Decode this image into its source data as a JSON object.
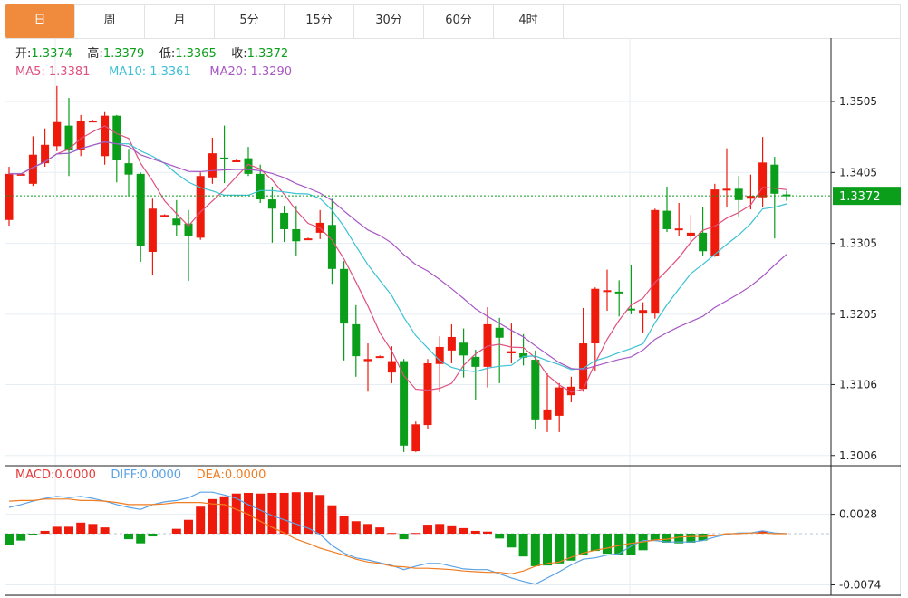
{
  "tabs": [
    {
      "label": "日",
      "active": true
    },
    {
      "label": "周",
      "active": false
    },
    {
      "label": "月",
      "active": false
    },
    {
      "label": "5分",
      "active": false
    },
    {
      "label": "15分",
      "active": false
    },
    {
      "label": "30分",
      "active": false
    },
    {
      "label": "60分",
      "active": false
    },
    {
      "label": "4时",
      "active": false
    }
  ],
  "ohlc_legend": {
    "open_label": "开:",
    "open": "1.3374",
    "high_label": "高:",
    "high": "1.3379",
    "low_label": "低:",
    "low": "1.3365",
    "close_label": "收:",
    "close": "1.3372"
  },
  "ma_legend": {
    "ma5": "MA5: 1.3381",
    "ma10": "MA10: 1.3361",
    "ma20": "MA20: 1.3290"
  },
  "macd_legend": {
    "macd": "MACD:0.0000",
    "diff": "DIFF:0.0000",
    "dea": "DEA:0.0000"
  },
  "colors": {
    "up": "#ee1b0d",
    "down": "#0a9e1a",
    "ma5": "#e0507f",
    "ma10": "#3cc1d3",
    "ma20": "#a757c4",
    "diff": "#5aa2e6",
    "dea": "#f07d22",
    "macd_label": "#e53b3b",
    "active_tab": "#f08a3c"
  },
  "chart_data": [
    {
      "type": "candlestick",
      "price_ticks": [
        "1.3505",
        "1.3405",
        "1.3305",
        "1.3205",
        "1.3106",
        "1.3006"
      ],
      "current_price": "1.3372",
      "ylim": [
        1.2992,
        1.3568
      ],
      "grid": true,
      "moving_averages": [
        5,
        10,
        20
      ],
      "ohlc": [
        [
          1.3338,
          1.3413,
          1.333,
          1.3403
        ],
        [
          1.3403,
          1.3404,
          1.3402,
          1.3403
        ],
        [
          1.3389,
          1.3456,
          1.3386,
          1.343
        ],
        [
          1.3418,
          1.3467,
          1.3413,
          1.3444
        ],
        [
          1.3442,
          1.3527,
          1.3435,
          1.3476
        ],
        [
          1.3471,
          1.351,
          1.34,
          1.3436
        ],
        [
          1.3436,
          1.3486,
          1.3428,
          1.3478
        ],
        [
          1.3478,
          1.3479,
          1.3477,
          1.3478
        ],
        [
          1.3428,
          1.349,
          1.3416,
          1.3485
        ],
        [
          1.3485,
          1.3486,
          1.3391,
          1.3422
        ],
        [
          1.3418,
          1.3437,
          1.3371,
          1.3402
        ],
        [
          1.3403,
          1.3405,
          1.3279,
          1.3302
        ],
        [
          1.3293,
          1.3368,
          1.3261,
          1.3354
        ],
        [
          1.3345,
          1.3346,
          1.3344,
          1.3345
        ],
        [
          1.334,
          1.3366,
          1.3315,
          1.3331
        ],
        [
          1.3333,
          1.3352,
          1.3252,
          1.3316
        ],
        [
          1.3313,
          1.3405,
          1.331,
          1.34
        ],
        [
          1.3398,
          1.3454,
          1.3389,
          1.3432
        ],
        [
          1.3426,
          1.3471,
          1.339,
          1.3425
        ],
        [
          1.3422,
          1.3423,
          1.3421,
          1.3422
        ],
        [
          1.3425,
          1.3441,
          1.34,
          1.3403
        ],
        [
          1.3403,
          1.3416,
          1.3362,
          1.3367
        ],
        [
          1.3367,
          1.3385,
          1.3306,
          1.3354
        ],
        [
          1.3348,
          1.3358,
          1.3307,
          1.3325
        ],
        [
          1.3325,
          1.3358,
          1.3288,
          1.3308
        ],
        [
          1.3312,
          1.3313,
          1.3311,
          1.3312
        ],
        [
          1.332,
          1.3352,
          1.3311,
          1.3334
        ],
        [
          1.3331,
          1.3368,
          1.3248,
          1.3269
        ],
        [
          1.3269,
          1.328,
          1.314,
          1.3192
        ],
        [
          1.3191,
          1.3218,
          1.3117,
          1.3146
        ],
        [
          1.3139,
          1.3164,
          1.3096,
          1.3142
        ],
        [
          1.3146,
          1.3147,
          1.3145,
          1.3146
        ],
        [
          1.3123,
          1.316,
          1.3108,
          1.3139
        ],
        [
          1.3139,
          1.3142,
          1.3011,
          1.302
        ],
        [
          1.3012,
          1.3054,
          1.3011,
          1.305
        ],
        [
          1.3049,
          1.3142,
          1.3044,
          1.3136
        ],
        [
          1.3135,
          1.3174,
          1.3095,
          1.3159
        ],
        [
          1.3154,
          1.3191,
          1.3136,
          1.3173
        ],
        [
          1.3165,
          1.3185,
          1.3116,
          1.3147
        ],
        [
          1.3145,
          1.3155,
          1.3084,
          1.3131
        ],
        [
          1.3131,
          1.3215,
          1.3102,
          1.3191
        ],
        [
          1.3186,
          1.32,
          1.3108,
          1.3172
        ],
        [
          1.315,
          1.3192,
          1.3136,
          1.3153
        ],
        [
          1.315,
          1.3177,
          1.3133,
          1.3144
        ],
        [
          1.3141,
          1.3154,
          1.3044,
          1.3057
        ],
        [
          1.3057,
          1.3122,
          1.3039,
          1.3071
        ],
        [
          1.3062,
          1.3108,
          1.3039,
          1.3102
        ],
        [
          1.3091,
          1.3117,
          1.3081,
          1.3103
        ],
        [
          1.31,
          1.3214,
          1.3096,
          1.3164
        ],
        [
          1.3164,
          1.3243,
          1.3125,
          1.3241
        ],
        [
          1.3238,
          1.3268,
          1.321,
          1.3239
        ],
        [
          1.3237,
          1.3253,
          1.3202,
          1.3236
        ],
        [
          1.3213,
          1.3275,
          1.3205,
          1.3211
        ],
        [
          1.3206,
          1.3222,
          1.3179,
          1.3211
        ],
        [
          1.3206,
          1.3354,
          1.3199,
          1.3352
        ],
        [
          1.3351,
          1.3385,
          1.3321,
          1.3325
        ],
        [
          1.3324,
          1.3362,
          1.3316,
          1.3326
        ],
        [
          1.3315,
          1.3345,
          1.3306,
          1.332
        ],
        [
          1.332,
          1.3356,
          1.3287,
          1.3294
        ],
        [
          1.3287,
          1.3389,
          1.3286,
          1.3381
        ],
        [
          1.338,
          1.3439,
          1.3356,
          1.3382
        ],
        [
          1.3382,
          1.34,
          1.3343,
          1.3366
        ],
        [
          1.3368,
          1.3402,
          1.3353,
          1.3372
        ],
        [
          1.337,
          1.3455,
          1.3356,
          1.3419
        ],
        [
          1.3416,
          1.3427,
          1.3312,
          1.3375
        ],
        [
          1.3374,
          1.3379,
          1.3365,
          1.3372
        ]
      ]
    },
    {
      "type": "bar",
      "indicator": "MACD",
      "ticks": [
        "0.0028",
        "-0.0074"
      ],
      "ylim": [
        -0.0082,
        0.007
      ],
      "macd": [
        -0.0016,
        -0.001,
        -0.0001,
        0.0004,
        0.001,
        0.001,
        0.0016,
        0.0014,
        0.0009,
        0,
        -0.0008,
        -0.0014,
        -0.0004,
        0,
        0.0007,
        0.002,
        0.0039,
        0.005,
        0.0054,
        0.0058,
        0.0059,
        0.0058,
        0.0059,
        0.0059,
        0.006,
        0.006,
        0.0056,
        0.0041,
        0.0026,
        0.0018,
        0.0014,
        0.0009,
        0.0001,
        -0.0008,
        0.0001,
        0.0013,
        0.0014,
        0.0012,
        0.0008,
        0.0004,
        0.0003,
        -0.0007,
        -0.002,
        -0.0033,
        -0.0047,
        -0.0046,
        -0.0043,
        -0.0039,
        -0.0031,
        -0.0025,
        -0.0029,
        -0.0031,
        -0.0031,
        -0.0024,
        -0.0009,
        -0.0013,
        -0.0014,
        -0.0013,
        -0.001,
        0,
        0,
        0,
        0,
        0.0004,
        0,
        0
      ],
      "diff": [
        0.0038,
        0.0042,
        0.0047,
        0.0051,
        0.0054,
        0.0052,
        0.0054,
        0.0051,
        0.0047,
        0.0042,
        0.0038,
        0.0035,
        0.0042,
        0.0046,
        0.0048,
        0.0052,
        0.006,
        0.006,
        0.0056,
        0.0051,
        0.0042,
        0.0034,
        0.0026,
        0.002,
        0.0014,
        0.0008,
        -0.0001,
        -0.0017,
        -0.0028,
        -0.0035,
        -0.0038,
        -0.0042,
        -0.0046,
        -0.0052,
        -0.0047,
        -0.0043,
        -0.0043,
        -0.0047,
        -0.0051,
        -0.0052,
        -0.0052,
        -0.0058,
        -0.0064,
        -0.0069,
        -0.0073,
        -0.0064,
        -0.0055,
        -0.0045,
        -0.0037,
        -0.0035,
        -0.0031,
        -0.0029,
        -0.0018,
        -0.001,
        -0.001,
        -0.0012,
        -0.0012,
        -0.0012,
        -0.001,
        -0.0005,
        -0.0001,
        0.0001,
        0.0001,
        0.0004,
        0.0001,
        0.0
      ],
      "dea": [
        0.0047,
        0.0048,
        0.0048,
        0.005,
        0.005,
        0.005,
        0.0048,
        0.0048,
        0.0047,
        0.0045,
        0.0042,
        0.0042,
        0.0042,
        0.0043,
        0.0045,
        0.0045,
        0.0045,
        0.0043,
        0.0042,
        0.0035,
        0.0028,
        0.0018,
        0.0009,
        0.0001,
        -0.0008,
        -0.0014,
        -0.0021,
        -0.0026,
        -0.0031,
        -0.0037,
        -0.0041,
        -0.0043,
        -0.0047,
        -0.0048,
        -0.005,
        -0.005,
        -0.0051,
        -0.0052,
        -0.0054,
        -0.0055,
        -0.0056,
        -0.0056,
        -0.0058,
        -0.0054,
        -0.0047,
        -0.0043,
        -0.0041,
        -0.0034,
        -0.0028,
        -0.0024,
        -0.0021,
        -0.0017,
        -0.0014,
        -0.0012,
        -0.0009,
        -0.0008,
        -0.0005,
        -0.0004,
        -0.0004,
        -0.0003,
        0,
        0,
        0.0001,
        0.0001,
        0,
        0
      ]
    }
  ]
}
